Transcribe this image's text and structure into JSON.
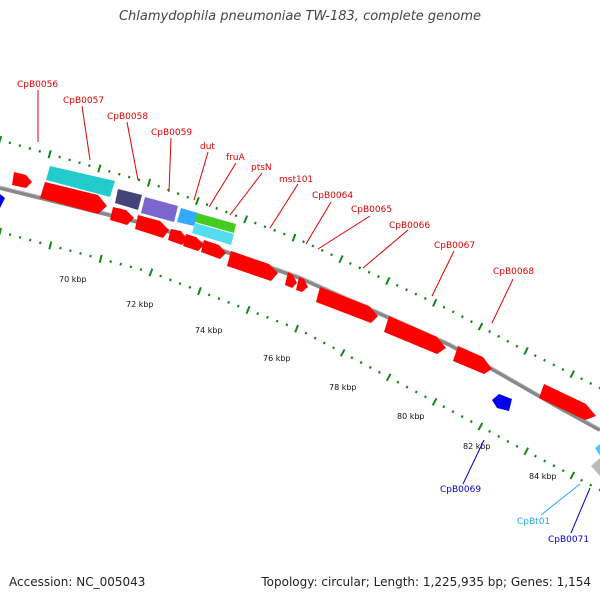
{
  "title": "Chlamydophila pneumoniae TW-183, complete genome",
  "footer": {
    "accession": "Accession: NC_005043",
    "topology": "Topology: circular; Length: 1,225,935 bp; Genes: 1,154"
  },
  "colors": {
    "red_gene": "#ff0000",
    "cyan_gene": "#22cccc",
    "blue_gene": "#0000ee",
    "slate_gene": "#44447a",
    "violet_gene": "#7a66cc",
    "sky_gene": "#33aaff",
    "green_gene": "#44cc22",
    "light_cyan_gene": "#55ddee",
    "tick_green": "#118811",
    "backbone": "#888888",
    "label_red": "#dd0000",
    "label_blue": "#0000cc",
    "label_cyan": "#22aaee"
  },
  "kbp_labels": [
    "70 kbp",
    "72 kbp",
    "74 kbp",
    "76 kbp",
    "78 kbp",
    "80 kbp",
    "82 kbp",
    "84 kbp"
  ],
  "gene_labels_forward": [
    "CpB0056",
    "CpB0057",
    "CpB0058",
    "CpB0059",
    "dut",
    "fruA",
    "ptsN",
    "mst101",
    "CpB0064",
    "CpB0065",
    "CpB0066",
    "CpB0067",
    "CpB0068"
  ],
  "gene_labels_reverse": [
    "CpB0069",
    "CpBt01",
    "CpB0071"
  ]
}
